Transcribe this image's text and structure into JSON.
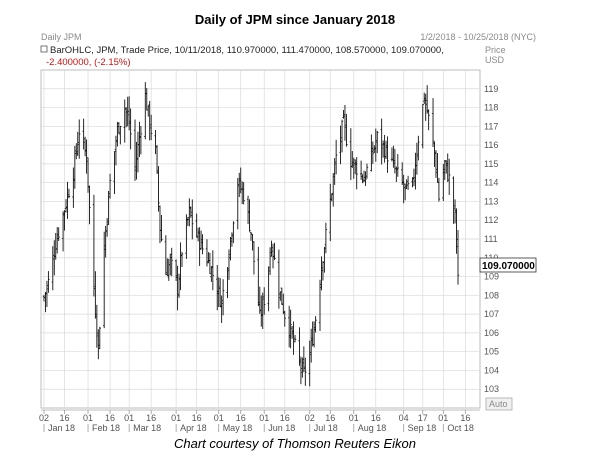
{
  "title": "Daily of JPM since January 2018",
  "caption": "Chart courtesy of Thomson Reuters Eikon",
  "panel": {
    "name": "Daily JPM",
    "date_range": "1/2/2018 - 10/25/2018 (NYC)",
    "series_line": "BarOHLC, JPM, Trade Price, 10/11/2018, 110.970000, 111.470000, 108.570000, 109.070000,",
    "change_line": "-2.400000, (-2.15%)",
    "price_axis_title": "Price",
    "usd_label": "USD",
    "last_price_label": "109.070000",
    "auto_label": "Auto"
  },
  "colors": {
    "bars": "#111111",
    "grid": "#d9d9d9",
    "change": "#d01010",
    "last_label_bg": "#ffffff"
  },
  "chart_data": {
    "type": "bar",
    "ohlc": true,
    "ylim": [
      102,
      120
    ],
    "y_ticks": [
      103,
      104,
      105,
      106,
      107,
      108,
      109,
      110,
      111,
      112,
      113,
      114,
      115,
      116,
      117,
      118,
      119
    ],
    "x_day_ticks": [
      "02",
      "16",
      "01",
      "16",
      "01",
      "16",
      "01",
      "16",
      "01",
      "16",
      "01",
      "16",
      "02",
      "16",
      "01",
      "16",
      "04",
      "17",
      "01",
      "16"
    ],
    "x_month_labels": [
      "Jan 18",
      "Feb 18",
      "Mar 18",
      "Apr 18",
      "May 18",
      "Jun 18",
      "Jul 18",
      "Aug 18",
      "Sep 18",
      "Oct 18"
    ],
    "last": {
      "date": "10/11/2018",
      "open": 110.97,
      "high": 111.47,
      "low": 108.57,
      "close": 109.07,
      "change": -2.4,
      "change_pct": -2.15
    },
    "close_path": [
      [
        "2018-01-02",
        107.9
      ],
      [
        "2018-01-05",
        108.7
      ],
      [
        "2018-01-10",
        110.8
      ],
      [
        "2018-01-16",
        112.6
      ],
      [
        "2018-01-22",
        114.6
      ],
      [
        "2018-01-26",
        116.8
      ],
      [
        "2018-01-31",
        115.4
      ],
      [
        "2018-02-05",
        108.4
      ],
      [
        "2018-02-08",
        105.2
      ],
      [
        "2018-02-12",
        110.6
      ],
      [
        "2018-02-16",
        114.0
      ],
      [
        "2018-02-21",
        116.8
      ],
      [
        "2018-02-26",
        118.0
      ],
      [
        "2018-03-01",
        117.2
      ],
      [
        "2018-03-05",
        114.8
      ],
      [
        "2018-03-09",
        117.0
      ],
      [
        "2018-03-12",
        118.6
      ],
      [
        "2018-03-15",
        117.2
      ],
      [
        "2018-03-19",
        115.6
      ],
      [
        "2018-03-22",
        111.6
      ],
      [
        "2018-03-26",
        109.2
      ],
      [
        "2018-03-29",
        109.8
      ],
      [
        "2018-04-03",
        108.4
      ],
      [
        "2018-04-06",
        110.4
      ],
      [
        "2018-04-11",
        112.4
      ],
      [
        "2018-04-16",
        111.2
      ],
      [
        "2018-04-20",
        110.5
      ],
      [
        "2018-04-25",
        109.6
      ],
      [
        "2018-04-30",
        108.4
      ],
      [
        "2018-05-03",
        107.6
      ],
      [
        "2018-05-08",
        110.4
      ],
      [
        "2018-05-14",
        114.0
      ],
      [
        "2018-05-18",
        113.4
      ],
      [
        "2018-05-23",
        111.4
      ],
      [
        "2018-05-29",
        106.8
      ],
      [
        "2018-06-01",
        107.8
      ],
      [
        "2018-06-06",
        110.8
      ],
      [
        "2018-06-11",
        108.4
      ],
      [
        "2018-06-15",
        107.0
      ],
      [
        "2018-06-20",
        105.8
      ],
      [
        "2018-06-25",
        104.4
      ],
      [
        "2018-06-28",
        103.8
      ],
      [
        "2018-07-02",
        104.8
      ],
      [
        "2018-07-06",
        106.8
      ],
      [
        "2018-07-10",
        109.6
      ],
      [
        "2018-07-13",
        111.2
      ],
      [
        "2018-07-17",
        113.6
      ],
      [
        "2018-07-20",
        115.4
      ],
      [
        "2018-07-25",
        117.2
      ],
      [
        "2018-07-30",
        115.2
      ],
      [
        "2018-08-03",
        114.8
      ],
      [
        "2018-08-08",
        114.2
      ],
      [
        "2018-08-13",
        115.4
      ],
      [
        "2018-08-17",
        116.4
      ],
      [
        "2018-08-22",
        115.8
      ],
      [
        "2018-08-27",
        115.0
      ],
      [
        "2018-08-31",
        114.4
      ],
      [
        "2018-09-05",
        113.6
      ],
      [
        "2018-09-10",
        113.8
      ],
      [
        "2018-09-14",
        116.4
      ],
      [
        "2018-09-18",
        118.6
      ],
      [
        "2018-09-21",
        117.4
      ],
      [
        "2018-09-25",
        115.6
      ],
      [
        "2018-09-28",
        113.2
      ],
      [
        "2018-10-02",
        115.0
      ],
      [
        "2018-10-05",
        114.2
      ],
      [
        "2018-10-09",
        112.2
      ],
      [
        "2018-10-11",
        109.07
      ]
    ]
  }
}
